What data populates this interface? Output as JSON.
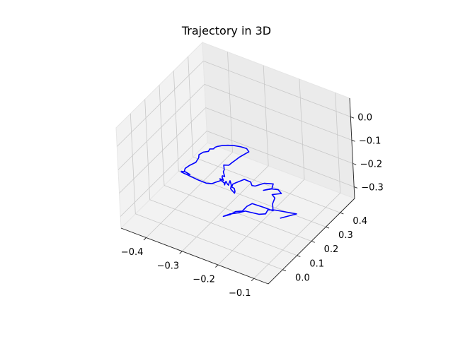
{
  "chart_data": {
    "type": "line",
    "projection": "3d",
    "title": "Trajectory in 3D",
    "xlabel": "",
    "ylabel": "",
    "zlabel": "",
    "grid": true,
    "xlim": [
      -0.47,
      -0.06
    ],
    "ylim": [
      -0.1,
      0.5
    ],
    "zlim": [
      -0.35,
      0.08
    ],
    "x_ticks": [
      -0.4,
      -0.3,
      -0.2,
      -0.1
    ],
    "x_tick_labels": [
      "−0.4",
      "−0.3",
      "−0.2",
      "−0.1"
    ],
    "y_ticks": [
      0.0,
      0.1,
      0.2,
      0.3,
      0.4
    ],
    "y_tick_labels": [
      "0.0",
      "0.1",
      "0.2",
      "0.3",
      "0.4"
    ],
    "z_ticks": [
      0.0,
      -0.1,
      -0.2,
      -0.3
    ],
    "z_tick_labels": [
      "0.0",
      "−0.1",
      "−0.2",
      "−0.3"
    ],
    "series": [
      {
        "color": "#0000ff",
        "points": [
          [
            -0.1542,
            0.2196,
            -0.3184
          ],
          [
            -0.1318,
            0.2781,
            -0.3227
          ],
          [
            -0.1712,
            0.2301,
            -0.3
          ],
          [
            -0.1775,
            0.1961,
            -0.2817
          ],
          [
            -0.1733,
            0.1695,
            -0.2804
          ],
          [
            -0.1953,
            0.1766,
            -0.2992
          ],
          [
            -0.2177,
            0.1394,
            -0.2761
          ],
          [
            -0.2272,
            0.1144,
            -0.2736
          ],
          [
            -0.2357,
            0.0801,
            -0.2624
          ],
          [
            -0.2512,
            0.0708,
            -0.2763
          ],
          [
            -0.2462,
            0.1048,
            -0.2866
          ],
          [
            -0.2412,
            0.1295,
            -0.2859
          ],
          [
            -0.2289,
            0.1465,
            -0.2867
          ],
          [
            -0.2239,
            0.1665,
            -0.276
          ],
          [
            -0.2175,
            0.1872,
            -0.273
          ],
          [
            -0.1906,
            0.2036,
            -0.2842
          ],
          [
            -0.1759,
            0.2262,
            -0.3033
          ],
          [
            -0.1843,
            0.2449,
            -0.2896
          ],
          [
            -0.1848,
            0.2629,
            -0.2763
          ],
          [
            -0.1912,
            0.2612,
            -0.2644
          ],
          [
            -0.1753,
            0.2856,
            -0.265
          ],
          [
            -0.184,
            0.2862,
            -0.2543
          ],
          [
            -0.1955,
            0.2624,
            -0.2426
          ],
          [
            -0.2078,
            0.2437,
            -0.2449
          ],
          [
            -0.1928,
            0.2643,
            -0.2428
          ],
          [
            -0.1913,
            0.272,
            -0.2251
          ],
          [
            -0.2081,
            0.2522,
            -0.2199
          ],
          [
            -0.2216,
            0.2221,
            -0.2217
          ],
          [
            -0.2252,
            0.2101,
            -0.2138
          ],
          [
            -0.2278,
            0.208,
            -0.1988
          ],
          [
            -0.2375,
            0.1901,
            -0.1826
          ],
          [
            -0.2509,
            0.1616,
            -0.1882
          ],
          [
            -0.2536,
            0.1503,
            -0.188
          ],
          [
            -0.2536,
            0.1414,
            -0.1945
          ],
          [
            -0.2487,
            0.1462,
            -0.2007
          ],
          [
            -0.2469,
            0.1461,
            -0.2128
          ],
          [
            -0.2477,
            0.144,
            -0.2193
          ],
          [
            -0.2568,
            0.1412,
            -0.2045
          ],
          [
            -0.2556,
            0.1439,
            -0.1897
          ],
          [
            -0.2556,
            0.1405,
            -0.1766
          ],
          [
            -0.2556,
            0.1371,
            -0.1664
          ],
          [
            -0.2556,
            0.1318,
            -0.1701
          ],
          [
            -0.2556,
            0.1253,
            -0.1783
          ],
          [
            -0.2556,
            0.1167,
            -0.1669
          ],
          [
            -0.2557,
            0.1107,
            -0.1534
          ],
          [
            -0.2557,
            0.1058,
            -0.1529
          ],
          [
            -0.2557,
            0.1004,
            -0.1619
          ],
          [
            -0.2557,
            0.0972,
            -0.1512
          ],
          [
            -0.2587,
            0.0836,
            -0.1336
          ],
          [
            -0.2599,
            0.0804,
            -0.1262
          ],
          [
            -0.2577,
            0.0855,
            -0.13
          ],
          [
            -0.2549,
            0.0917,
            -0.1373
          ],
          [
            -0.2591,
            0.0935,
            -0.1252
          ],
          [
            -0.2588,
            0.0956,
            -0.1217
          ],
          [
            -0.2554,
            0.1026,
            -0.1275
          ],
          [
            -0.2585,
            0.1022,
            -0.1085
          ],
          [
            -0.2579,
            0.1074,
            -0.1029
          ],
          [
            -0.2596,
            0.1099,
            -0.085
          ],
          [
            -0.2529,
            0.1275,
            -0.0926
          ],
          [
            -0.2499,
            0.1398,
            -0.0886
          ],
          [
            -0.246,
            0.153,
            -0.0843
          ],
          [
            -0.24,
            0.1708,
            -0.0769
          ],
          [
            -0.2335,
            0.1884,
            -0.0719
          ],
          [
            -0.2276,
            0.2058,
            -0.0681
          ],
          [
            -0.2334,
            0.2059,
            -0.0578
          ],
          [
            -0.2441,
            0.1934,
            -0.0489
          ],
          [
            -0.2574,
            0.1809,
            -0.0438
          ],
          [
            -0.2709,
            0.1705,
            -0.0438
          ],
          [
            -0.2847,
            0.1638,
            -0.0491
          ],
          [
            -0.2959,
            0.1603,
            -0.0569
          ],
          [
            -0.3021,
            0.1597,
            -0.0637
          ],
          [
            -0.3064,
            0.1609,
            -0.0712
          ],
          [
            -0.3074,
            0.1607,
            -0.0744
          ],
          [
            -0.308,
            0.1569,
            -0.0727
          ],
          [
            -0.3144,
            0.1509,
            -0.0731
          ],
          [
            -0.3188,
            0.1511,
            -0.0859
          ],
          [
            -0.3306,
            0.1446,
            -0.0922
          ],
          [
            -0.3432,
            0.1444,
            -0.1107
          ],
          [
            -0.3468,
            0.1498,
            -0.1295
          ],
          [
            -0.3567,
            0.1524,
            -0.1561
          ],
          [
            -0.3729,
            0.1485,
            -0.176
          ],
          [
            -0.3852,
            0.1463,
            -0.1949
          ],
          [
            -0.3854,
            0.1416,
            -0.2023
          ],
          [
            -0.3826,
            0.1376,
            -0.202
          ],
          [
            -0.379,
            0.1353,
            -0.2005
          ],
          [
            -0.377,
            0.1354,
            -0.2018
          ],
          [
            -0.3732,
            0.1354,
            -0.2038
          ],
          [
            -0.3676,
            0.1339,
            -0.2036
          ],
          [
            -0.3661,
            0.1319,
            -0.2016
          ],
          [
            -0.3698,
            0.1297,
            -0.1978
          ],
          [
            -0.3755,
            0.128,
            -0.1944
          ],
          [
            -0.379,
            0.1269,
            -0.1934
          ],
          [
            -0.3811,
            0.1264,
            -0.1944
          ],
          [
            -0.3866,
            0.1233,
            -0.1941
          ],
          [
            -0.386,
            0.1213,
            -0.1951
          ],
          [
            -0.3802,
            0.1237,
            -0.1985
          ],
          [
            -0.3716,
            0.1313,
            -0.2065
          ],
          [
            -0.3642,
            0.1386,
            -0.2149
          ],
          [
            -0.3634,
            0.1372,
            -0.2137
          ],
          [
            -0.3638,
            0.139,
            -0.2149
          ],
          [
            -0.3529,
            0.1499,
            -0.2268
          ],
          [
            -0.3361,
            0.166,
            -0.2414
          ],
          [
            -0.3252,
            0.1775,
            -0.2446
          ],
          [
            -0.3172,
            0.1823,
            -0.2372
          ],
          [
            -0.3038,
            0.1867,
            -0.2242
          ]
        ]
      }
    ],
    "view": {
      "elev": 30,
      "azim": -60
    }
  }
}
